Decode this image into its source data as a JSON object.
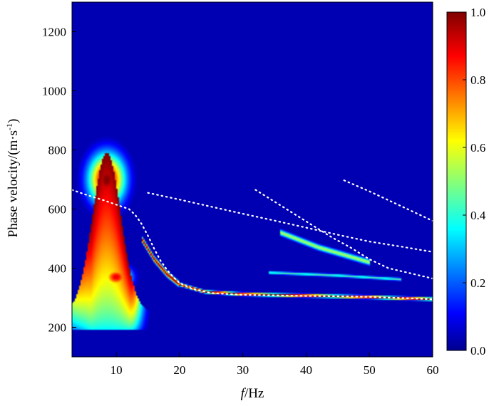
{
  "chart_data": {
    "type": "heatmap",
    "title": "",
    "xlabel_italic": "f",
    "xlabel_rest": "/Hz",
    "ylabel": "Phase velocity/(m·s",
    "ylabel_sup": "-1",
    "ylabel_close": ")",
    "xlim": [
      3,
      60
    ],
    "ylim": [
      100,
      1300
    ],
    "x_ticks": [
      10,
      20,
      30,
      40,
      50,
      60
    ],
    "y_ticks": [
      200,
      400,
      600,
      800,
      1000,
      1200
    ],
    "colorbar": {
      "range": [
        0,
        1
      ],
      "ticks": [
        "0.0",
        "0.2",
        "0.4",
        "0.6",
        "0.8",
        "1.0"
      ],
      "colormap": "jet"
    },
    "grid": false,
    "energy_features": [
      {
        "name": "fundamental-mode",
        "points": [
          [
            14,
            500
          ],
          [
            16,
            430
          ],
          [
            18,
            380
          ],
          [
            20,
            345
          ],
          [
            24,
            320
          ],
          [
            30,
            312
          ],
          [
            40,
            307
          ],
          [
            50,
            302
          ],
          [
            60,
            295
          ]
        ],
        "amplitude": 1.0
      },
      {
        "name": "low-frequency-lobe",
        "peak_x": 8.5,
        "peak_y": 700,
        "amplitude": 1.0
      },
      {
        "name": "lower-lobe",
        "peak_x": 10,
        "peak_y": 370,
        "amplitude": 0.9
      },
      {
        "name": "higher-mode-1",
        "points": [
          [
            36,
            520
          ],
          [
            42,
            470
          ],
          [
            50,
            420
          ]
        ],
        "amplitude": 0.55
      },
      {
        "name": "higher-mode-2",
        "points": [
          [
            34,
            385
          ],
          [
            45,
            375
          ],
          [
            55,
            362
          ]
        ],
        "amplitude": 0.45
      }
    ],
    "picked_dispersion_curves": [
      {
        "x": [
          3,
          5,
          8,
          10,
          12,
          13,
          14,
          15,
          16,
          17,
          18,
          19,
          20,
          22,
          25,
          28,
          30,
          35,
          40,
          45,
          50,
          55,
          60
        ],
        "y": [
          665,
          650,
          630,
          615,
          600,
          580,
          550,
          510,
          465,
          425,
          395,
          370,
          350,
          330,
          316,
          312,
          310,
          308,
          306,
          305,
          303,
          299,
          295
        ]
      },
      {
        "x": [
          15,
          20,
          25,
          30,
          35,
          40,
          45,
          50,
          55,
          60
        ],
        "y": [
          655,
          632,
          608,
          584,
          561,
          537,
          513,
          490,
          473,
          455
        ]
      },
      {
        "x": [
          32,
          35,
          38,
          41,
          44,
          47,
          50,
          53,
          56,
          60
        ],
        "y": [
          665,
          625,
          585,
          545,
          505,
          470,
          430,
          400,
          385,
          365
        ]
      },
      {
        "x": [
          46,
          50,
          54,
          57,
          60
        ],
        "y": [
          697,
          660,
          620,
          590,
          560
        ]
      }
    ]
  }
}
